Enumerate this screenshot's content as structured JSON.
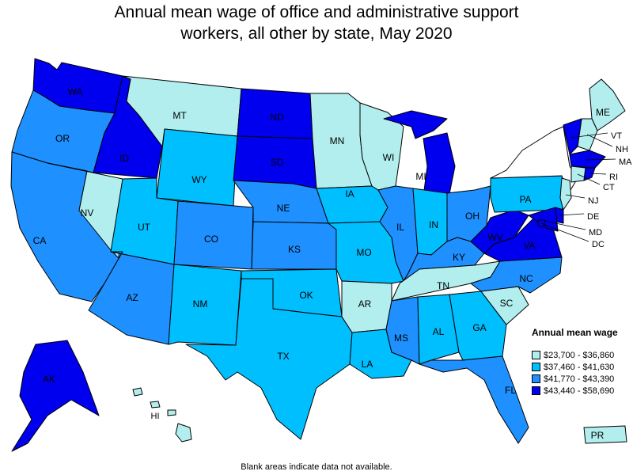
{
  "title": {
    "line1": "Annual mean wage of office and administrative support",
    "line2": "workers, all other by state, May 2020"
  },
  "legend": {
    "title": "Annual mean wage",
    "items": [
      {
        "range": "$23,700 - $36,860",
        "color": "#b2eeee"
      },
      {
        "range": "$37,460 - $41,630",
        "color": "#00bfff"
      },
      {
        "range": "$41,770 - $43,390",
        "color": "#1e90ff"
      },
      {
        "range": "$43,440 - $58,690",
        "color": "#0000ee"
      }
    ]
  },
  "note": "Blank areas indicate data not available.",
  "states": {
    "WA": {
      "label": "WA",
      "class": 3
    },
    "OR": {
      "label": "OR",
      "class": 2
    },
    "CA": {
      "label": "CA",
      "class": 2
    },
    "NV": {
      "label": "NV",
      "class": 0
    },
    "ID": {
      "label": "ID",
      "class": 3
    },
    "MT": {
      "label": "MT",
      "class": 0
    },
    "WY": {
      "label": "WY",
      "class": 1
    },
    "UT": {
      "label": "UT",
      "class": 1
    },
    "AZ": {
      "label": "AZ",
      "class": 2
    },
    "CO": {
      "label": "CO",
      "class": 2
    },
    "NM": {
      "label": "NM",
      "class": 1
    },
    "ND": {
      "label": "ND",
      "class": 3
    },
    "SD": {
      "label": "SD",
      "class": 3
    },
    "NE": {
      "label": "NE",
      "class": 2
    },
    "KS": {
      "label": "KS",
      "class": 2
    },
    "OK": {
      "label": "OK",
      "class": 1
    },
    "TX": {
      "label": "TX",
      "class": 1
    },
    "MN": {
      "label": "MN",
      "class": 0
    },
    "IA": {
      "label": "IA",
      "class": 1
    },
    "MO": {
      "label": "MO",
      "class": 1
    },
    "AR": {
      "label": "AR",
      "class": 0
    },
    "LA": {
      "label": "LA",
      "class": 1
    },
    "WI": {
      "label": "WI",
      "class": 0
    },
    "IL": {
      "label": "IL",
      "class": 2
    },
    "MI": {
      "label": "MI",
      "class": 3
    },
    "IN": {
      "label": "IN",
      "class": 1
    },
    "OH": {
      "label": "OH",
      "class": 2
    },
    "KY": {
      "label": "KY",
      "class": 2
    },
    "TN": {
      "label": "TN",
      "class": 0
    },
    "MS": {
      "label": "MS",
      "class": 2
    },
    "AL": {
      "label": "AL",
      "class": 1
    },
    "GA": {
      "label": "GA",
      "class": 1
    },
    "FL": {
      "label": "FL",
      "class": 2
    },
    "SC": {
      "label": "SC",
      "class": 0
    },
    "NC": {
      "label": "NC",
      "class": 2
    },
    "VA": {
      "label": "VA",
      "class": 3
    },
    "WV": {
      "label": "WV",
      "class": 3
    },
    "PA": {
      "label": "PA",
      "class": 1
    },
    "NY": {
      "label": "",
      "class": -1
    },
    "ME": {
      "label": "ME",
      "class": 0
    },
    "NH": {
      "label": "NH",
      "class": 0
    },
    "VT": {
      "label": "VT",
      "class": 3
    },
    "MA": {
      "label": "MA",
      "class": 3
    },
    "CT": {
      "label": "CT",
      "class": 0
    },
    "RI": {
      "label": "RI",
      "class": 3
    },
    "NJ": {
      "label": "NJ",
      "class": 0
    },
    "DE": {
      "label": "DE",
      "class": 3
    },
    "MD": {
      "label": "MD",
      "class": 3
    },
    "DC": {
      "label": "DC",
      "class": 3
    },
    "AK": {
      "label": "AK",
      "class": 3
    },
    "HI": {
      "label": "HI",
      "class": 0
    },
    "PR": {
      "label": "PR",
      "class": 0
    }
  }
}
